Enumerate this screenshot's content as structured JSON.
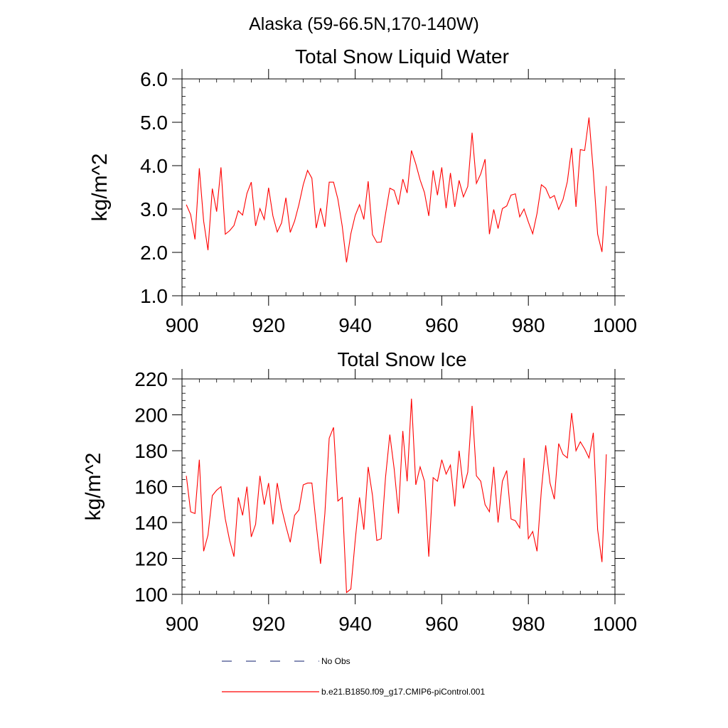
{
  "figure": {
    "main_title": "Alaska (59-66.5N,170-140W)"
  },
  "chart_data": [
    {
      "type": "line",
      "title": "Total Snow Liquid Water",
      "xlabel": "",
      "ylabel": "kg/m^2",
      "xlim": [
        900,
        1000
      ],
      "ylim": [
        1.0,
        6.0
      ],
      "x_ticks": [
        900,
        920,
        940,
        960,
        980,
        1000
      ],
      "x_tick_labels": [
        "900",
        "920",
        "940",
        "960",
        "980",
        "1000"
      ],
      "y_ticks": [
        1.0,
        2.0,
        3.0,
        4.0,
        5.0,
        6.0
      ],
      "y_tick_labels": [
        "1.0",
        "2.0",
        "3.0",
        "4.0",
        "5.0",
        "6.0"
      ],
      "x_start": 901,
      "series": [
        {
          "name": "b.e21.B1850.f09_g17.CMIP6-piControl.001",
          "color": "#ff0000",
          "values": [
            3.1,
            2.87,
            2.3,
            3.94,
            2.72,
            2.05,
            3.47,
            2.94,
            3.96,
            2.42,
            2.5,
            2.62,
            2.96,
            2.86,
            3.36,
            3.62,
            2.61,
            3.01,
            2.76,
            3.49,
            2.84,
            2.47,
            2.68,
            3.26,
            2.46,
            2.72,
            3.1,
            3.56,
            3.89,
            3.71,
            2.56,
            3.02,
            2.59,
            3.62,
            3.62,
            3.23,
            2.61,
            1.77,
            2.43,
            2.85,
            3.1,
            2.76,
            3.64,
            2.41,
            2.23,
            2.24,
            2.88,
            3.48,
            3.43,
            3.1,
            3.69,
            3.37,
            4.35,
            4.04,
            3.67,
            3.38,
            2.84,
            3.89,
            3.32,
            3.96,
            3.02,
            3.83,
            3.05,
            3.66,
            3.28,
            3.52,
            4.76,
            3.59,
            3.81,
            4.15,
            2.42,
            2.99,
            2.55,
            3.01,
            3.07,
            3.32,
            3.35,
            2.82,
            3.0,
            2.7,
            2.43,
            2.9,
            3.56,
            3.48,
            3.25,
            3.31,
            2.99,
            3.22,
            3.63,
            4.41,
            3.05,
            4.37,
            4.35,
            5.11,
            3.86,
            2.42,
            2.01,
            3.53
          ]
        }
      ]
    },
    {
      "type": "line",
      "title": "Total Snow Ice",
      "xlabel": "",
      "ylabel": "kg/m^2",
      "xlim": [
        900,
        1000
      ],
      "ylim": [
        100,
        220
      ],
      "x_ticks": [
        900,
        920,
        940,
        960,
        980,
        1000
      ],
      "x_tick_labels": [
        "900",
        "920",
        "940",
        "960",
        "980",
        "1000"
      ],
      "y_ticks": [
        100,
        120,
        140,
        160,
        180,
        200,
        220
      ],
      "y_tick_labels": [
        "100",
        "120",
        "140",
        "160",
        "180",
        "200",
        "220"
      ],
      "x_start": 901,
      "series": [
        {
          "name": "b.e21.B1850.f09_g17.CMIP6-piControl.001",
          "color": "#ff0000",
          "values": [
            166,
            146,
            145,
            175,
            124,
            133,
            155,
            158,
            160,
            142,
            130,
            121,
            154,
            144,
            160,
            132,
            139,
            166,
            150,
            162,
            139,
            162,
            148,
            138,
            129,
            144,
            147,
            161,
            162,
            162,
            139,
            117,
            145,
            187,
            193,
            152,
            154,
            101,
            103,
            130,
            154,
            136,
            171,
            155,
            130,
            131,
            165,
            189,
            170,
            145,
            191,
            163,
            209,
            161,
            171,
            163,
            121,
            165,
            163,
            175,
            167,
            172,
            149,
            180,
            159,
            168,
            205,
            166,
            163,
            150,
            146,
            171,
            140,
            163,
            169,
            142,
            141,
            137,
            176,
            131,
            135,
            124,
            158,
            183,
            162,
            153,
            184,
            178,
            176,
            201,
            180,
            185,
            181,
            176,
            190,
            136,
            118,
            178
          ]
        }
      ]
    }
  ],
  "legend": {
    "items": [
      {
        "label": "No Obs",
        "color": "#3d4a8a",
        "style": "dashed"
      },
      {
        "label": "b.e21.B1850.f09_g17.CMIP6-piControl.001",
        "color": "#ff0000",
        "style": "solid"
      }
    ]
  }
}
